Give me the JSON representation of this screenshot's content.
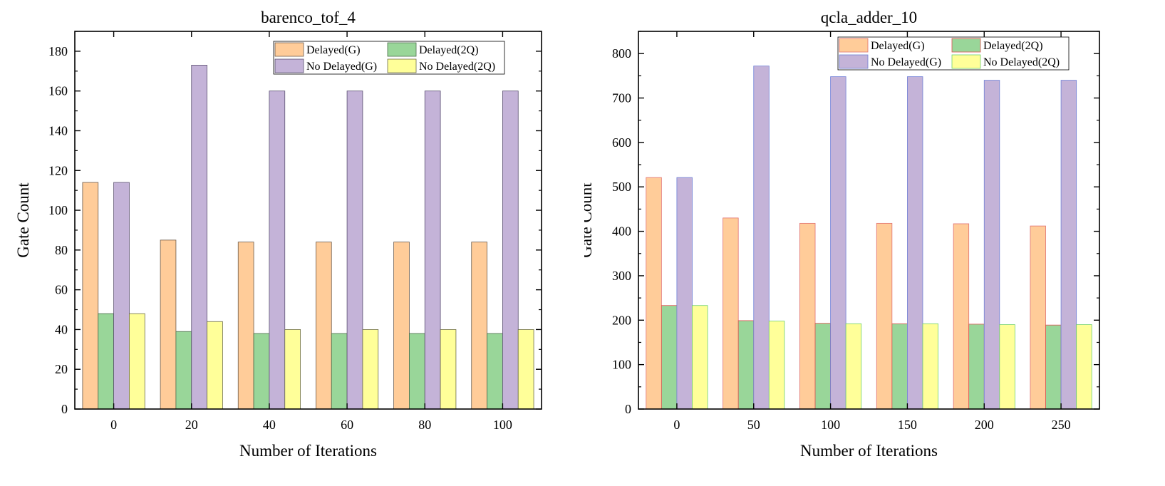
{
  "chart_data": [
    {
      "type": "bar",
      "title": "barenco_tof_4",
      "xlabel": "Number of Iterations",
      "ylabel": "Gate Count",
      "categories": [
        "0",
        "20",
        "40",
        "60",
        "80",
        "100"
      ],
      "ylim": [
        0,
        190
      ],
      "yticks": [
        0,
        20,
        40,
        60,
        80,
        100,
        120,
        140,
        160,
        180
      ],
      "legend_position": "top-right",
      "series": [
        {
          "name": "Delayed(G)",
          "values": [
            114,
            85,
            84,
            84,
            84,
            84
          ],
          "fill": "#FFCC99",
          "stroke": "#6b5a4a"
        },
        {
          "name": "Delayed(2Q)",
          "values": [
            48,
            39,
            38,
            38,
            38,
            38
          ],
          "fill": "#99D699",
          "stroke": "#4a6b4a"
        },
        {
          "name": "No Delayed(G)",
          "values": [
            114,
            173,
            160,
            160,
            160,
            160
          ],
          "fill": "#C4B3D8",
          "stroke": "#5a5070"
        },
        {
          "name": "No Delayed(2Q)",
          "values": [
            48,
            44,
            40,
            40,
            40,
            40
          ],
          "fill": "#FFFF99",
          "stroke": "#6b6b4a"
        }
      ]
    },
    {
      "type": "bar",
      "title": "qcla_adder_10",
      "xlabel": "Number of Iterations",
      "ylabel": "Gate Count",
      "categories": [
        "0",
        "50",
        "100",
        "150",
        "200",
        "250"
      ],
      "ylim": [
        0,
        850
      ],
      "yticks": [
        0,
        100,
        200,
        300,
        400,
        500,
        600,
        700,
        800
      ],
      "legend_position": "top-right",
      "series": [
        {
          "name": "Delayed(G)",
          "values": [
            521,
            430,
            418,
            418,
            417,
            412
          ],
          "fill": "#FFCC99",
          "stroke": "#e07070"
        },
        {
          "name": "Delayed(2Q)",
          "values": [
            233,
            199,
            193,
            192,
            191,
            189
          ],
          "fill": "#99D699",
          "stroke": "#e05050"
        },
        {
          "name": "No Delayed(G)",
          "values": [
            521,
            772,
            748,
            748,
            740,
            740
          ],
          "fill": "#C4B3D8",
          "stroke": "#6f7fd6"
        },
        {
          "name": "No Delayed(2Q)",
          "values": [
            233,
            198,
            192,
            192,
            190,
            190
          ],
          "fill": "#FFFF99",
          "stroke": "#6fd06f"
        }
      ]
    }
  ]
}
